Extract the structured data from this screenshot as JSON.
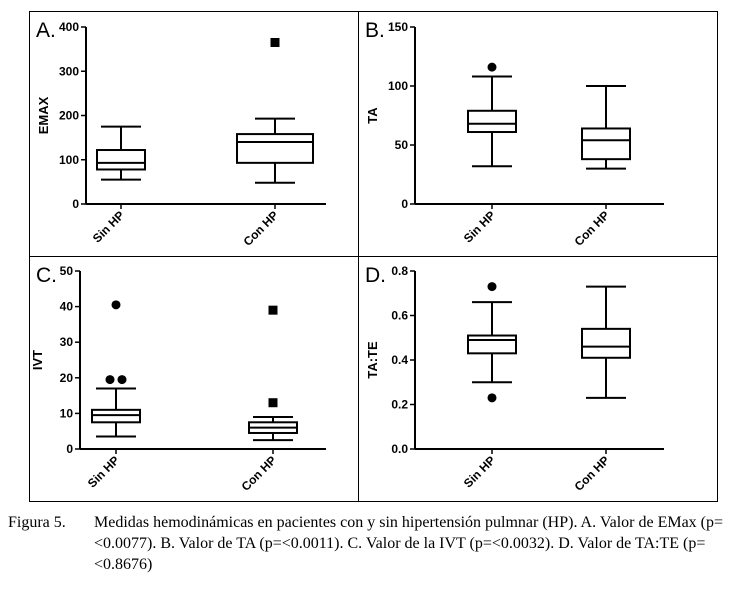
{
  "panels": [
    {
      "letter": "A.",
      "chart_data": {
        "type": "box",
        "ylabel": "EMAX",
        "ylim": [
          0,
          400
        ],
        "yticks": [
          "0",
          "100",
          "200",
          "300",
          "400"
        ],
        "categories": [
          "Sin HP",
          "Con HP"
        ],
        "boxes": [
          {
            "whisker_low": 55,
            "q1": 78,
            "median": 93,
            "q3": 122,
            "whisker_high": 175,
            "outliers": []
          },
          {
            "whisker_low": 48,
            "q1": 93,
            "median": 140,
            "q3": 158,
            "whisker_high": 193,
            "outliers": [
              365
            ]
          }
        ],
        "outlier_markers": [
          "circle",
          "square"
        ]
      }
    },
    {
      "letter": "B.",
      "chart_data": {
        "type": "box",
        "ylabel": "TA",
        "ylim": [
          0,
          150
        ],
        "yticks": [
          "0",
          "50",
          "100",
          "150"
        ],
        "categories": [
          "Sin HP",
          "Con HP"
        ],
        "boxes": [
          {
            "whisker_low": 32,
            "q1": 61,
            "median": 68,
            "q3": 79,
            "whisker_high": 108,
            "outliers": [
              116
            ]
          },
          {
            "whisker_low": 30,
            "q1": 38,
            "median": 54,
            "q3": 64,
            "whisker_high": 100,
            "outliers": []
          }
        ],
        "outlier_markers": [
          "circle",
          "square"
        ]
      }
    },
    {
      "letter": "C.",
      "chart_data": {
        "type": "box",
        "ylabel": "IVT",
        "ylim": [
          0,
          50
        ],
        "yticks": [
          "0",
          "10",
          "20",
          "30",
          "40",
          "50"
        ],
        "categories": [
          "Sin HP",
          "Con HP"
        ],
        "boxes": [
          {
            "whisker_low": 3.5,
            "q1": 7.5,
            "median": 9.5,
            "q3": 11,
            "whisker_high": 17,
            "outliers": [
              19.5,
              19.5,
              40.5
            ]
          },
          {
            "whisker_low": 2.5,
            "q1": 4.5,
            "median": 6,
            "q3": 7.5,
            "whisker_high": 9,
            "outliers": [
              13,
              39
            ]
          }
        ],
        "outlier_markers": [
          "circle",
          "square"
        ]
      }
    },
    {
      "letter": "D.",
      "chart_data": {
        "type": "box",
        "ylabel": "TA:TE",
        "ylim": [
          0,
          0.8
        ],
        "yticks": [
          "0.0",
          "0.2",
          "0.4",
          "0.6",
          "0.8"
        ],
        "categories": [
          "Sin HP",
          "Con HP"
        ],
        "boxes": [
          {
            "whisker_low": 0.3,
            "q1": 0.43,
            "median": 0.49,
            "q3": 0.51,
            "whisker_high": 0.66,
            "outliers": [
              0.23,
              0.73
            ]
          },
          {
            "whisker_low": 0.23,
            "q1": 0.41,
            "median": 0.46,
            "q3": 0.54,
            "whisker_high": 0.73,
            "outliers": []
          }
        ],
        "outlier_markers": [
          "circle",
          "square"
        ]
      }
    }
  ],
  "caption": {
    "label": "Figura 5.",
    "text": "Medidas hemodinámicas en pacientes con y sin hipertensión pulmnar (HP). A. Valor de EMax (p=<0.0077). B. Valor de TA (p=<0.0011). C. Valor de la IVT (p=<0.0032). D. Valor de TA:TE (p=<0.8676)"
  }
}
